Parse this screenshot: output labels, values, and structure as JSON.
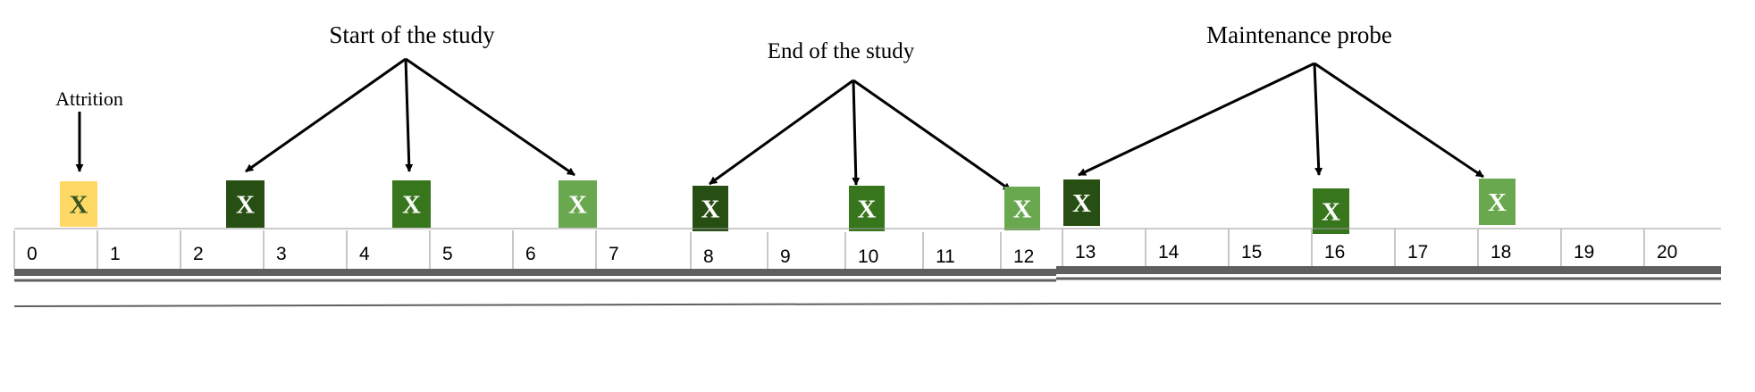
{
  "annotations": {
    "attrition": "Attrition",
    "start": "Start of the study",
    "end": "End of the study",
    "maintenance": "Maintenance probe"
  },
  "timeline": {
    "ticks": [
      "0",
      "1",
      "2",
      "3",
      "4",
      "5",
      "6",
      "7",
      "8",
      "9",
      "10",
      "11",
      "12",
      "13",
      "14",
      "15",
      "16",
      "17",
      "18",
      "19",
      "20"
    ]
  },
  "markers": [
    {
      "name": "attrition-marker",
      "label": "X",
      "color": "#FFD966",
      "text_color": "#375623"
    },
    {
      "name": "start-marker-1",
      "label": "X",
      "color": "#274E13",
      "text_color": "#ffffff"
    },
    {
      "name": "start-marker-2",
      "label": "X",
      "color": "#38761D",
      "text_color": "#ffffff"
    },
    {
      "name": "start-marker-3",
      "label": "X",
      "color": "#6AA84F",
      "text_color": "#ffffff"
    },
    {
      "name": "end-marker-1",
      "label": "X",
      "color": "#274E13",
      "text_color": "#ffffff"
    },
    {
      "name": "end-marker-2",
      "label": "X",
      "color": "#38761D",
      "text_color": "#ffffff"
    },
    {
      "name": "end-marker-3",
      "label": "X",
      "color": "#6AA84F",
      "text_color": "#ffffff"
    },
    {
      "name": "maintenance-marker-1",
      "label": "X",
      "color": "#274E13",
      "text_color": "#ffffff"
    },
    {
      "name": "maintenance-marker-2",
      "label": "X",
      "color": "#38761D",
      "text_color": "#ffffff"
    },
    {
      "name": "maintenance-marker-3",
      "label": "X",
      "color": "#6AA84F",
      "text_color": "#ffffff"
    }
  ]
}
